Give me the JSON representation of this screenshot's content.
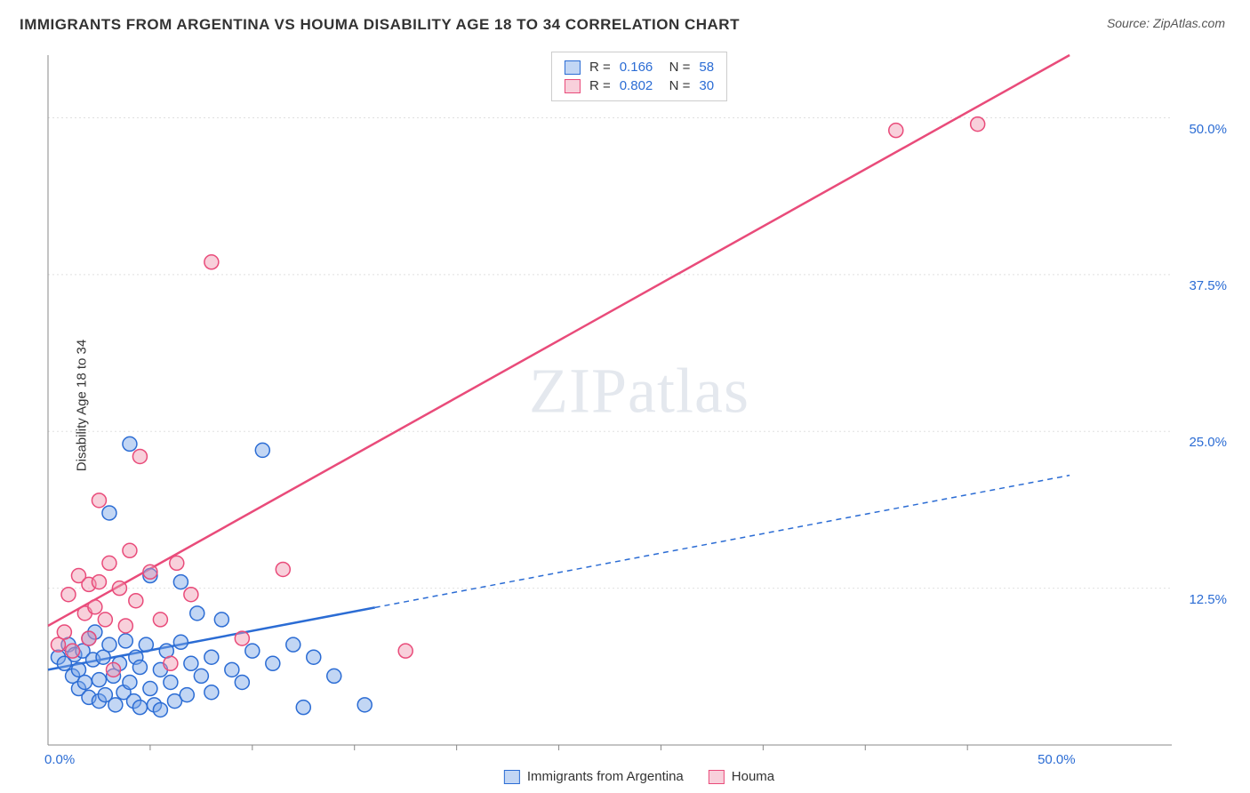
{
  "title": "IMMIGRANTS FROM ARGENTINA VS HOUMA DISABILITY AGE 18 TO 34 CORRELATION CHART",
  "source_label": "Source: ZipAtlas.com",
  "ylabel": "Disability Age 18 to 34",
  "watermark": "ZIPatlas",
  "chart": {
    "type": "scatter",
    "xlim": [
      0,
      55
    ],
    "ylim": [
      0,
      55
    ],
    "x_ticks": [
      0,
      50
    ],
    "x_tick_labels": [
      "0.0%",
      "50.0%"
    ],
    "y_ticks": [
      12.5,
      25,
      37.5,
      50
    ],
    "y_tick_labels": [
      "12.5%",
      "25.0%",
      "37.5%",
      "50.0%"
    ],
    "x_minor_ticks": [
      5,
      10,
      15,
      20,
      25,
      30,
      35,
      40,
      45
    ],
    "grid_color": "#e0e0e0",
    "axis_color": "#888888",
    "background_color": "#ffffff",
    "tick_label_color": "#2b6cd4",
    "tick_label_fontsize": 15,
    "marker_radius": 8,
    "marker_stroke_width": 1.5,
    "line_width": 2.5
  },
  "series": [
    {
      "name": "Immigrants from Argentina",
      "fill_color": "rgba(120,165,230,0.45)",
      "stroke_color": "#2b6cd4",
      "r_value": "0.166",
      "n_value": "58",
      "trend": {
        "x1": 0,
        "y1": 6.0,
        "x2": 50,
        "y2": 21.5,
        "solid_until_x": 16
      },
      "points": [
        [
          0.5,
          7
        ],
        [
          0.8,
          6.5
        ],
        [
          1.0,
          8
        ],
        [
          1.2,
          5.5
        ],
        [
          1.3,
          7.2
        ],
        [
          1.5,
          6
        ],
        [
          1.5,
          4.5
        ],
        [
          1.7,
          7.5
        ],
        [
          1.8,
          5
        ],
        [
          2.0,
          8.5
        ],
        [
          2.0,
          3.8
        ],
        [
          2.2,
          6.8
        ],
        [
          2.3,
          9
        ],
        [
          2.5,
          5.2
        ],
        [
          2.5,
          3.5
        ],
        [
          2.7,
          7
        ],
        [
          2.8,
          4
        ],
        [
          3.0,
          8
        ],
        [
          3.0,
          18.5
        ],
        [
          3.2,
          5.5
        ],
        [
          3.3,
          3.2
        ],
        [
          3.5,
          6.5
        ],
        [
          3.7,
          4.2
        ],
        [
          3.8,
          8.3
        ],
        [
          4.0,
          24
        ],
        [
          4.0,
          5
        ],
        [
          4.2,
          3.5
        ],
        [
          4.3,
          7
        ],
        [
          4.5,
          6.2
        ],
        [
          4.5,
          3
        ],
        [
          4.8,
          8
        ],
        [
          5.0,
          13.5
        ],
        [
          5.0,
          4.5
        ],
        [
          5.2,
          3.2
        ],
        [
          5.5,
          6
        ],
        [
          5.5,
          2.8
        ],
        [
          5.8,
          7.5
        ],
        [
          6.0,
          5
        ],
        [
          6.2,
          3.5
        ],
        [
          6.5,
          8.2
        ],
        [
          6.5,
          13
        ],
        [
          6.8,
          4
        ],
        [
          7.0,
          6.5
        ],
        [
          7.3,
          10.5
        ],
        [
          7.5,
          5.5
        ],
        [
          8.0,
          7
        ],
        [
          8.0,
          4.2
        ],
        [
          8.5,
          10
        ],
        [
          9.0,
          6
        ],
        [
          9.5,
          5
        ],
        [
          10.0,
          7.5
        ],
        [
          10.5,
          23.5
        ],
        [
          11.0,
          6.5
        ],
        [
          12.0,
          8
        ],
        [
          12.5,
          3
        ],
        [
          13.0,
          7
        ],
        [
          14.0,
          5.5
        ],
        [
          15.5,
          3.2
        ]
      ]
    },
    {
      "name": "Houma",
      "fill_color": "rgba(240,150,175,0.45)",
      "stroke_color": "#e94b7a",
      "r_value": "0.802",
      "n_value": "30",
      "trend": {
        "x1": 0,
        "y1": 9.5,
        "x2": 50,
        "y2": 55,
        "solid_until_x": 50
      },
      "points": [
        [
          0.5,
          8
        ],
        [
          0.8,
          9
        ],
        [
          1.0,
          12
        ],
        [
          1.2,
          7.5
        ],
        [
          1.5,
          13.5
        ],
        [
          1.8,
          10.5
        ],
        [
          2.0,
          12.8
        ],
        [
          2.0,
          8.5
        ],
        [
          2.3,
          11
        ],
        [
          2.5,
          13
        ],
        [
          2.5,
          19.5
        ],
        [
          2.8,
          10
        ],
        [
          3.0,
          14.5
        ],
        [
          3.2,
          6
        ],
        [
          3.5,
          12.5
        ],
        [
          3.8,
          9.5
        ],
        [
          4.0,
          15.5
        ],
        [
          4.3,
          11.5
        ],
        [
          4.5,
          23
        ],
        [
          5.0,
          13.8
        ],
        [
          5.5,
          10
        ],
        [
          6.0,
          6.5
        ],
        [
          6.3,
          14.5
        ],
        [
          7.0,
          12
        ],
        [
          8.0,
          38.5
        ],
        [
          9.5,
          8.5
        ],
        [
          11.5,
          14
        ],
        [
          17.5,
          7.5
        ],
        [
          41.5,
          49
        ],
        [
          45.5,
          49.5
        ]
      ]
    }
  ],
  "legend_bottom": [
    {
      "label": "Immigrants from Argentina",
      "fill": "rgba(120,165,230,0.45)",
      "stroke": "#2b6cd4"
    },
    {
      "label": "Houma",
      "fill": "rgba(240,150,175,0.45)",
      "stroke": "#e94b7a"
    }
  ]
}
